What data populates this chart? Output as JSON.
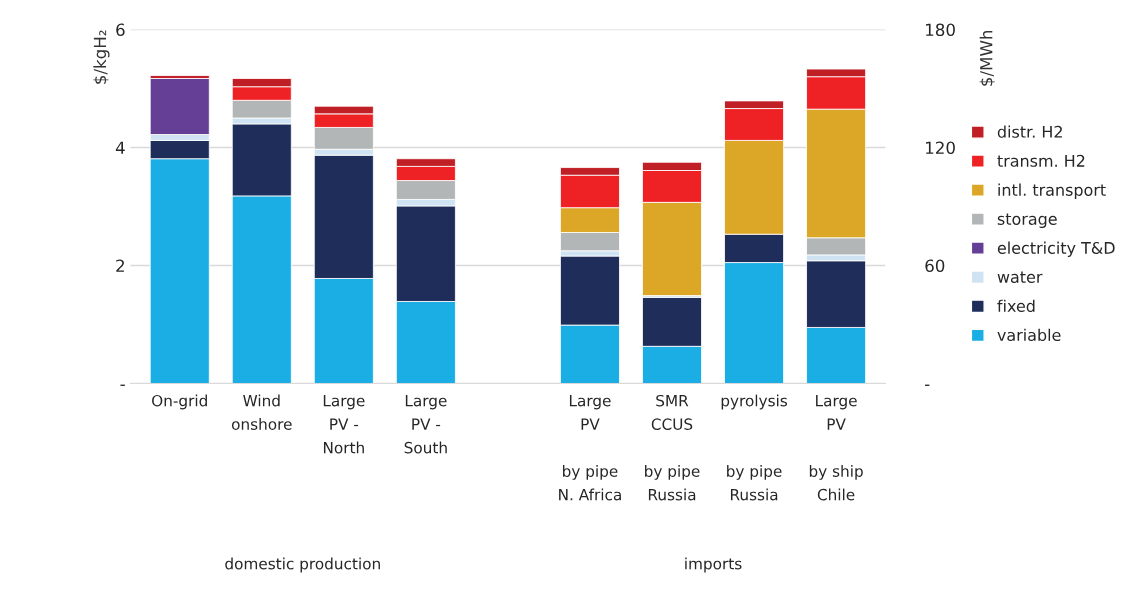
{
  "chart_data": {
    "type": "bar",
    "stacked": true,
    "categories": [
      "On-grid",
      "Wind\nonshore",
      "Large\nPV -\nNorth",
      "Large\nPV -\nSouth",
      null,
      "Large\nPV\n\nby pipe\nN. Africa",
      "SMR\nCCUS\n\nby pipe\nRussia",
      "pyrolysis\n\n\nby pipe\nRussia",
      "Large\nPV\n\nby ship\nChile"
    ],
    "series": [
      {
        "name": "variable",
        "color": "#1aaee5",
        "values": [
          3.81,
          3.18,
          1.78,
          1.39,
          null,
          0.99,
          0.63,
          2.05,
          0.95
        ]
      },
      {
        "name": "fixed",
        "color": "#1e2d5a",
        "values": [
          0.31,
          1.22,
          2.09,
          1.62,
          null,
          1.17,
          0.83,
          0.48,
          1.13
        ]
      },
      {
        "name": "water",
        "color": "#cfe3f2",
        "values": [
          0.1,
          0.1,
          0.1,
          0.11,
          null,
          0.09,
          0.03,
          null,
          0.1
        ]
      },
      {
        "name": "electricity T&D",
        "color": "#653f96",
        "values": [
          0.95,
          null,
          null,
          null,
          null,
          null,
          null,
          null,
          null
        ]
      },
      {
        "name": "storage",
        "color": "#b3b6b6",
        "values": [
          null,
          0.3,
          0.37,
          0.32,
          null,
          0.31,
          null,
          null,
          0.29
        ]
      },
      {
        "name": "intl. transport",
        "color": "#dca626",
        "values": [
          null,
          null,
          null,
          null,
          null,
          0.42,
          1.58,
          1.59,
          2.18
        ]
      },
      {
        "name": "transm. H2",
        "color": "#ee2224",
        "values": [
          null,
          0.23,
          0.23,
          0.24,
          null,
          0.55,
          0.54,
          0.54,
          0.55
        ]
      },
      {
        "name": "distr. H2",
        "color": "#c01f26",
        "values": [
          0.05,
          0.14,
          0.13,
          0.13,
          null,
          0.13,
          0.14,
          0.13,
          0.13
        ]
      }
    ],
    "ylabel": "$/kgH₂",
    "y2label": "$/MWh",
    "ylim": [
      0,
      6
    ],
    "yticks": [
      {
        "value": 0,
        "label": "-"
      },
      2,
      4,
      6
    ],
    "y2lim": [
      0,
      180
    ],
    "y2ticks": [
      {
        "value": 0,
        "label": "-"
      },
      60,
      120,
      180
    ],
    "grid": "y",
    "legend": "right",
    "annotations": [
      "domestic production",
      "imports"
    ]
  }
}
